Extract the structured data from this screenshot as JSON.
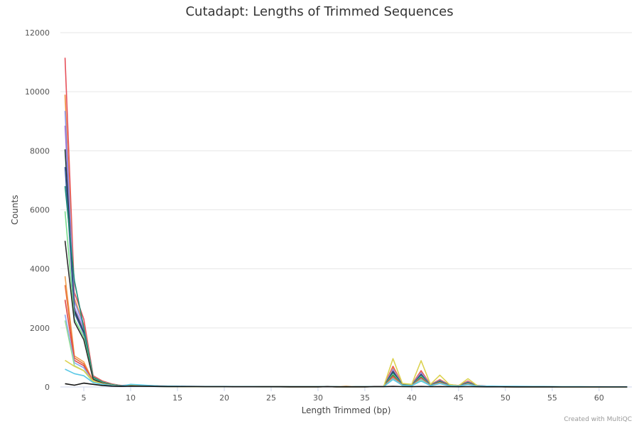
{
  "chart_data": {
    "type": "line",
    "title": "Cutadapt: Lengths of Trimmed Sequences",
    "xlabel": "Length Trimmed (bp)",
    "ylabel": "Counts",
    "xlim": [
      2.5,
      63.5
    ],
    "ylim": [
      0,
      12000
    ],
    "x_ticks": [
      5,
      10,
      15,
      20,
      25,
      30,
      35,
      40,
      45,
      50,
      55,
      60
    ],
    "y_ticks": [
      0,
      2000,
      4000,
      6000,
      8000,
      10000,
      12000
    ],
    "grid": "horizontal",
    "legend": "none",
    "credit": "Created with MultiQC",
    "x": [
      3,
      4,
      5,
      6,
      7,
      8,
      9,
      10,
      11,
      12,
      13,
      14,
      15,
      16,
      17,
      18,
      19,
      20,
      21,
      22,
      23,
      24,
      25,
      26,
      27,
      28,
      29,
      30,
      31,
      32,
      33,
      34,
      35,
      36,
      37,
      38,
      39,
      40,
      41,
      42,
      43,
      44,
      45,
      46,
      47,
      48,
      49,
      50,
      51,
      52,
      53,
      54,
      55,
      56,
      57,
      58,
      59,
      60,
      61,
      62,
      63
    ],
    "series": [
      {
        "color": "#e6505a",
        "values": [
          11150,
          3200,
          2300,
          380,
          200,
          100,
          50,
          70,
          60,
          45,
          35,
          30,
          25,
          22,
          20,
          18,
          16,
          15,
          14,
          13,
          12,
          12,
          11,
          11,
          10,
          10,
          10,
          10,
          20,
          10,
          10,
          10,
          10,
          20,
          20,
          700,
          100,
          80,
          550,
          80,
          250,
          80,
          50,
          200,
          50,
          30,
          20,
          10,
          10,
          8,
          8,
          6,
          6,
          5,
          5,
          4,
          4,
          3,
          3,
          2,
          1
        ]
      },
      {
        "color": "#f08c3c",
        "values": [
          9900,
          3000,
          2100,
          350,
          180,
          90,
          45,
          60,
          55,
          40,
          32,
          28,
          22,
          20,
          18,
          16,
          15,
          14,
          13,
          12,
          11,
          11,
          10,
          10,
          10,
          10,
          10,
          10,
          18,
          10,
          12,
          10,
          10,
          18,
          18,
          650,
          90,
          70,
          500,
          70,
          230,
          70,
          45,
          180,
          45,
          28,
          18,
          9,
          9,
          7,
          7,
          6,
          5,
          5,
          4,
          4,
          3,
          3,
          2,
          2,
          1
        ]
      },
      {
        "color": "#8c96f0",
        "values": [
          9350,
          2900,
          2050,
          340,
          170,
          85,
          45,
          60,
          50,
          40,
          30,
          26,
          22,
          20,
          18,
          16,
          15,
          14,
          13,
          12,
          11,
          11,
          10,
          10,
          10,
          10,
          10,
          10,
          18,
          10,
          10,
          10,
          10,
          18,
          18,
          600,
          90,
          70,
          480,
          70,
          220,
          70,
          45,
          170,
          45,
          26,
          18,
          9,
          9,
          7,
          7,
          6,
          5,
          5,
          4,
          4,
          3,
          3,
          2,
          2,
          1
        ]
      },
      {
        "color": "#a07ad2",
        "values": [
          8850,
          2700,
          1950,
          320,
          160,
          80,
          40,
          55,
          48,
          38,
          30,
          25,
          20,
          18,
          16,
          15,
          14,
          13,
          12,
          11,
          10,
          10,
          10,
          10,
          9,
          9,
          9,
          9,
          16,
          9,
          9,
          9,
          9,
          16,
          16,
          560,
          85,
          65,
          450,
          65,
          210,
          65,
          42,
          160,
          42,
          25,
          17,
          9,
          8,
          7,
          7,
          6,
          5,
          5,
          4,
          4,
          3,
          3,
          2,
          2,
          1
        ]
      },
      {
        "color": "#1e3c3c",
        "values": [
          8050,
          2600,
          1850,
          300,
          150,
          75,
          40,
          55,
          45,
          36,
          28,
          24,
          20,
          18,
          16,
          15,
          14,
          13,
          12,
          11,
          10,
          10,
          9,
          9,
          9,
          9,
          9,
          9,
          15,
          9,
          9,
          9,
          9,
          15,
          15,
          520,
          80,
          60,
          420,
          60,
          200,
          60,
          40,
          150,
          40,
          24,
          16,
          8,
          8,
          6,
          6,
          5,
          5,
          4,
          4,
          3,
          3,
          2,
          2,
          1,
          1
        ]
      },
      {
        "color": "#3c5aa0",
        "values": [
          7450,
          2500,
          1800,
          290,
          145,
          72,
          38,
          52,
          44,
          35,
          27,
          23,
          19,
          17,
          15,
          14,
          13,
          12,
          11,
          10,
          10,
          9,
          9,
          9,
          8,
          8,
          8,
          8,
          14,
          8,
          8,
          8,
          8,
          14,
          14,
          480,
          78,
          58,
          400,
          58,
          190,
          58,
          38,
          145,
          38,
          23,
          15,
          8,
          7,
          6,
          6,
          5,
          5,
          4,
          4,
          3,
          3,
          2,
          2,
          1,
          1
        ]
      },
      {
        "color": "#1e8c78",
        "values": [
          6800,
          3600,
          2000,
          330,
          165,
          82,
          42,
          58,
          50,
          40,
          30,
          25,
          20,
          18,
          16,
          15,
          14,
          13,
          12,
          11,
          10,
          10,
          9,
          9,
          9,
          9,
          9,
          9,
          15,
          9,
          9,
          9,
          9,
          15,
          15,
          460,
          75,
          55,
          380,
          55,
          180,
          55,
          36,
          140,
          36,
          22,
          15,
          8,
          7,
          6,
          6,
          5,
          5,
          4,
          4,
          3,
          3,
          2,
          2,
          1,
          1
        ]
      },
      {
        "color": "#78dc8c",
        "values": [
          5950,
          2300,
          1700,
          280,
          140,
          70,
          36,
          50,
          42,
          34,
          26,
          22,
          18,
          16,
          15,
          14,
          13,
          12,
          11,
          10,
          9,
          9,
          9,
          8,
          8,
          8,
          8,
          8,
          13,
          8,
          8,
          8,
          8,
          13,
          13,
          420,
          70,
          52,
          350,
          52,
          170,
          52,
          34,
          130,
          34,
          21,
          14,
          7,
          7,
          6,
          5,
          5,
          4,
          4,
          3,
          3,
          2,
          2,
          1,
          1,
          1
        ]
      },
      {
        "color": "#2d2d2d",
        "values": [
          4950,
          2200,
          1600,
          260,
          130,
          65,
          34,
          48,
          40,
          32,
          25,
          21,
          17,
          15,
          14,
          13,
          12,
          11,
          10,
          9,
          9,
          8,
          8,
          8,
          8,
          8,
          8,
          8,
          12,
          8,
          8,
          8,
          8,
          12,
          12,
          380,
          65,
          48,
          320,
          48,
          160,
          48,
          32,
          120,
          32,
          20,
          13,
          7,
          6,
          5,
          5,
          4,
          4,
          3,
          3,
          2,
          2,
          2,
          1,
          1,
          1
        ]
      },
      {
        "color": "#f0a050",
        "values": [
          3750,
          1050,
          850,
          200,
          110,
          55,
          30,
          42,
          36,
          28,
          22,
          18,
          15,
          14,
          13,
          12,
          11,
          10,
          9,
          9,
          8,
          8,
          8,
          7,
          7,
          7,
          7,
          7,
          11,
          7,
          30,
          7,
          7,
          11,
          11,
          350,
          60,
          45,
          300,
          45,
          150,
          45,
          30,
          110,
          30,
          18,
          12,
          6,
          6,
          5,
          5,
          4,
          4,
          3,
          3,
          2,
          2,
          1,
          1,
          1,
          1
        ]
      },
      {
        "color": "#e8703c",
        "values": [
          3450,
          980,
          780,
          190,
          105,
          52,
          28,
          40,
          34,
          27,
          21,
          17,
          14,
          13,
          12,
          11,
          10,
          10,
          9,
          8,
          8,
          8,
          7,
          7,
          7,
          7,
          7,
          7,
          10,
          7,
          8,
          7,
          7,
          10,
          10,
          330,
          58,
          42,
          290,
          42,
          140,
          42,
          28,
          105,
          28,
          17,
          11,
          6,
          5,
          5,
          4,
          4,
          3,
          3,
          2,
          2,
          2,
          1,
          1,
          1,
          1
        ]
      },
      {
        "color": "#e04848",
        "values": [
          2950,
          900,
          720,
          180,
          100,
          50,
          27,
          38,
          32,
          26,
          20,
          16,
          13,
          12,
          11,
          10,
          10,
          9,
          8,
          8,
          8,
          7,
          7,
          7,
          6,
          6,
          6,
          6,
          10,
          6,
          6,
          6,
          6,
          10,
          10,
          310,
          55,
          40,
          280,
          40,
          130,
          40,
          27,
          100,
          27,
          16,
          11,
          5,
          5,
          4,
          4,
          3,
          3,
          3,
          2,
          2,
          1,
          1,
          1,
          1,
          1
        ]
      },
      {
        "color": "#8caaf0",
        "values": [
          2450,
          820,
          650,
          170,
          95,
          48,
          26,
          36,
          30,
          25,
          19,
          15,
          12,
          11,
          10,
          10,
          9,
          9,
          8,
          7,
          7,
          7,
          7,
          6,
          6,
          6,
          6,
          6,
          9,
          6,
          6,
          6,
          6,
          9,
          9,
          290,
          52,
          38,
          260,
          38,
          125,
          38,
          26,
          95,
          26,
          15,
          10,
          5,
          5,
          4,
          4,
          3,
          3,
          2,
          2,
          2,
          1,
          1,
          1,
          1,
          1
        ]
      },
      {
        "color": "#96dc96",
        "values": [
          2250,
          720,
          550,
          160,
          90,
          45,
          25,
          34,
          28,
          24,
          18,
          14,
          12,
          11,
          10,
          9,
          9,
          8,
          8,
          7,
          7,
          6,
          6,
          6,
          6,
          6,
          6,
          6,
          9,
          6,
          6,
          6,
          6,
          9,
          9,
          270,
          50,
          36,
          240,
          36,
          120,
          36,
          25,
          90,
          25,
          14,
          10,
          5,
          4,
          4,
          3,
          3,
          3,
          2,
          2,
          1,
          1,
          1,
          1,
          1,
          1
        ]
      },
      {
        "color": "#dcd250",
        "values": [
          900,
          700,
          550,
          200,
          100,
          55,
          30,
          40,
          34,
          27,
          20,
          16,
          13,
          12,
          11,
          10,
          10,
          9,
          8,
          8,
          8,
          7,
          7,
          7,
          6,
          6,
          6,
          6,
          10,
          6,
          6,
          6,
          6,
          10,
          10,
          960,
          120,
          90,
          890,
          90,
          400,
          90,
          40,
          280,
          40,
          20,
          12,
          6,
          6,
          5,
          5,
          4,
          4,
          3,
          3,
          2,
          2,
          2,
          1,
          1,
          1
        ]
      },
      {
        "color": "#5ac8e6",
        "values": [
          600,
          450,
          380,
          150,
          90,
          50,
          28,
          90,
          70,
          50,
          35,
          28,
          24,
          22,
          20,
          18,
          17,
          16,
          15,
          14,
          14,
          13,
          13,
          12,
          12,
          12,
          12,
          12,
          14,
          12,
          12,
          12,
          12,
          14,
          14,
          250,
          60,
          45,
          200,
          45,
          110,
          45,
          30,
          80,
          30,
          28,
          26,
          24,
          22,
          20,
          18,
          16,
          14,
          12,
          10,
          9,
          8,
          7,
          6,
          5,
          4
        ]
      },
      {
        "color": "#111111",
        "values": [
          110,
          60,
          130,
          90,
          50,
          30,
          20,
          30,
          26,
          22,
          18,
          15,
          13,
          12,
          11,
          10,
          10,
          9,
          8,
          8,
          8,
          7,
          7,
          7,
          6,
          6,
          6,
          6,
          9,
          6,
          6,
          6,
          6,
          9,
          9,
          20,
          12,
          10,
          18,
          10,
          14,
          10,
          8,
          12,
          8,
          6,
          5,
          4,
          3,
          3,
          2,
          2,
          2,
          1,
          1,
          1,
          1,
          1,
          1,
          1,
          1
        ]
      }
    ]
  }
}
